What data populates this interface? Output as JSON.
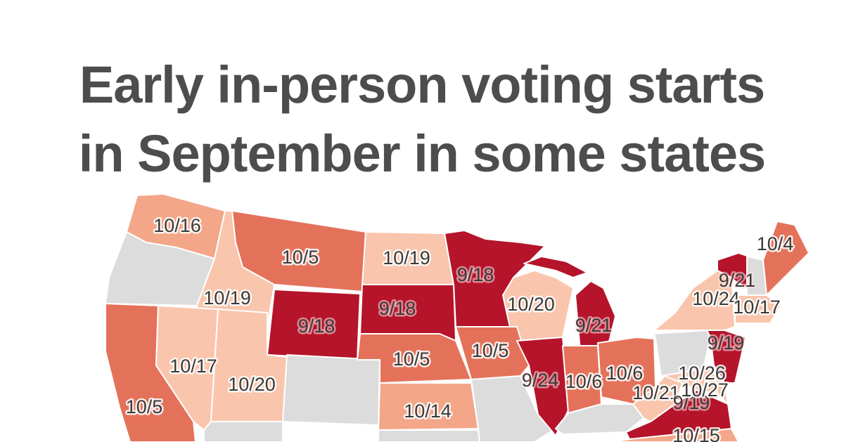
{
  "title": {
    "line1": "Early in-person voting starts",
    "line2": "in September in some states"
  },
  "colors": {
    "september": "#b5142a",
    "early_october": "#e4725a",
    "mid_october": "#f4a688",
    "late_october": "#f9c5ad",
    "none": "#dcdcdc"
  },
  "states": [
    {
      "id": "wa",
      "label": "10/16"
    },
    {
      "id": "or",
      "label": ""
    },
    {
      "id": "id",
      "label": "10/19"
    },
    {
      "id": "mt",
      "label": "10/5"
    },
    {
      "id": "wy",
      "label": "9/18"
    },
    {
      "id": "nd",
      "label": "10/19"
    },
    {
      "id": "sd",
      "label": "9/18"
    },
    {
      "id": "mn",
      "label": "9/18"
    },
    {
      "id": "wi",
      "label": "10/20"
    },
    {
      "id": "mi",
      "label": "9/21"
    },
    {
      "id": "ca",
      "label": "10/5"
    },
    {
      "id": "nv",
      "label": "10/17"
    },
    {
      "id": "ut",
      "label": "10/20"
    },
    {
      "id": "co",
      "label": ""
    },
    {
      "id": "ne",
      "label": "10/5"
    },
    {
      "id": "ia",
      "label": "10/5"
    },
    {
      "id": "il",
      "label": "9/24"
    },
    {
      "id": "in",
      "label": "10/6"
    },
    {
      "id": "oh",
      "label": "10/6"
    },
    {
      "id": "ks",
      "label": "10/14"
    },
    {
      "id": "mo",
      "label": ""
    },
    {
      "id": "ky",
      "label": ""
    },
    {
      "id": "wv",
      "label": "10/21"
    },
    {
      "id": "va",
      "label": "9/19"
    },
    {
      "id": "nc",
      "label": "10/15"
    },
    {
      "id": "pa",
      "label": ""
    },
    {
      "id": "ny",
      "label": "10/24"
    },
    {
      "id": "vt",
      "label": "9/21"
    },
    {
      "id": "nh",
      "label": ""
    },
    {
      "id": "me",
      "label": "10/4"
    },
    {
      "id": "ma",
      "label": "10/17"
    },
    {
      "id": "nj",
      "label": "9/19"
    },
    {
      "id": "md",
      "label": "10/26"
    },
    {
      "id": "de",
      "label": "10/27"
    },
    {
      "id": "az",
      "label": ""
    },
    {
      "id": "ok",
      "label": ""
    }
  ]
}
